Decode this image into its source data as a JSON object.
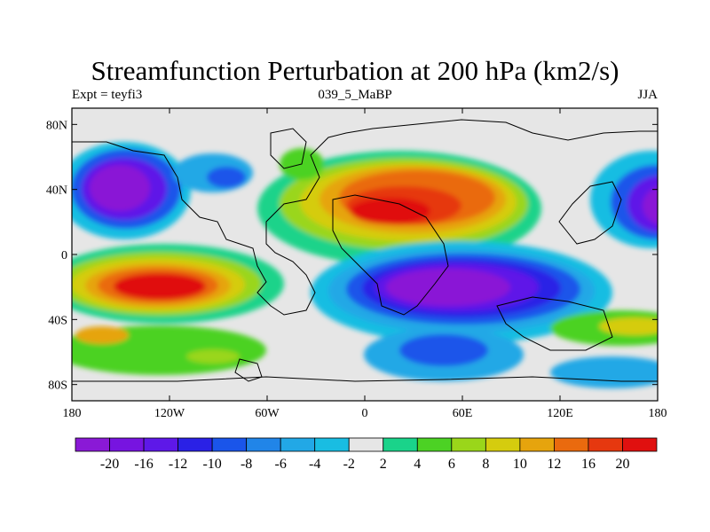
{
  "title": "Streamfunction Perturbation at 200 hPa (km2/s)",
  "left_string": "Expt = teyfi3",
  "center_string": "039_5_MaBP",
  "right_string": "JJA",
  "map": {
    "lon_ticks": [
      "180",
      "120W",
      "60W",
      "0",
      "60E",
      "120E",
      "180"
    ],
    "lat_ticks": [
      "80N",
      "40N",
      "0",
      "40S",
      "80S"
    ],
    "missing_color": "#e6e6e6"
  },
  "colorbar": {
    "labels": [
      "-20",
      "-16",
      "-12",
      "-10",
      "-8",
      "-6",
      "-4",
      "-2",
      "2",
      "4",
      "6",
      "8",
      "10",
      "12",
      "16",
      "20"
    ],
    "colors": [
      "#8a19d6",
      "#7714e0",
      "#5e18e8",
      "#2a21e6",
      "#1a55ea",
      "#2185e8",
      "#22a8e6",
      "#19bde2",
      "#e6e6e6",
      "#1ad38a",
      "#4cd224",
      "#9ad61a",
      "#d5cc0e",
      "#e6a40d",
      "#ea6a0e",
      "#e6380f",
      "#e0100f"
    ]
  }
}
